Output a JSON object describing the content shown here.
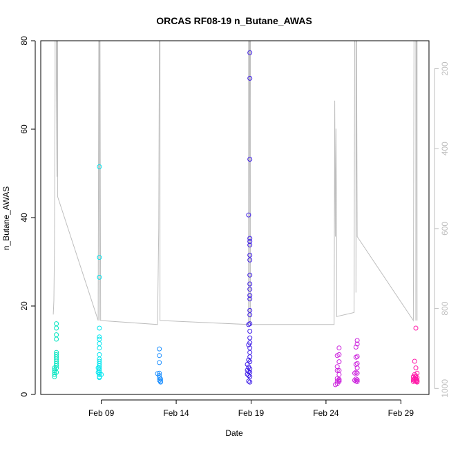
{
  "chart_data": {
    "type": "scatter",
    "title": "ORCAS RF08-19 n_Butane_AWAS",
    "xlabel": "Date",
    "ylabel": "n_Butane_AWAS",
    "ylim": [
      0,
      80
    ],
    "y_ticks": [
      0,
      20,
      40,
      60,
      80
    ],
    "xlim": [
      "2016-02-04T23:00",
      "2016-03-01T21:00"
    ],
    "x_ticks": [
      {
        "label": "Feb 09",
        "date": "2016-02-09"
      },
      {
        "label": "Feb 14",
        "date": "2016-02-14"
      },
      {
        "label": "Feb 19",
        "date": "2016-02-19"
      },
      {
        "label": "Feb 24",
        "date": "2016-02-24"
      },
      {
        "label": "Feb 29",
        "date": "2016-02-29"
      }
    ],
    "secondary_axis": {
      "label": "",
      "ticks": [
        200,
        400,
        600,
        800,
        1000
      ],
      "inverted": true,
      "range": [
        130,
        1015
      ],
      "color": "#bebebe"
    },
    "series": [
      {
        "color": "#00e5c0",
        "points": [
          [
            "2016-02-06T00:00",
            16.0
          ],
          [
            "2016-02-06T00:00",
            15.0
          ],
          [
            "2016-02-06T00:00",
            13.5
          ],
          [
            "2016-02-06T00:00",
            12.5
          ],
          [
            "2016-02-06T00:00",
            9.5
          ],
          [
            "2016-02-06T00:00",
            9.0
          ],
          [
            "2016-02-06T00:00",
            8.5
          ],
          [
            "2016-02-06T00:00",
            8.0
          ],
          [
            "2016-02-06T00:00",
            7.5
          ],
          [
            "2016-02-06T00:00",
            7.0
          ],
          [
            "2016-02-06T00:00",
            6.5
          ],
          [
            "2016-02-06T00:00",
            6.0
          ],
          [
            "2016-02-05T21:00",
            6.0
          ],
          [
            "2016-02-05T21:00",
            5.5
          ],
          [
            "2016-02-05T21:00",
            5.0
          ],
          [
            "2016-02-05T21:00",
            4.5
          ],
          [
            "2016-02-05T21:00",
            4.0
          ],
          [
            "2016-02-06T00:00",
            5.0
          ]
        ]
      },
      {
        "color": "#00e5ee",
        "points": [
          [
            "2016-02-08T21:00",
            51.5
          ],
          [
            "2016-02-08T21:00",
            31.0
          ],
          [
            "2016-02-08T21:00",
            26.5
          ],
          [
            "2016-02-08T21:00",
            15.0
          ],
          [
            "2016-02-08T21:00",
            13.0
          ],
          [
            "2016-02-08T21:00",
            12.5
          ],
          [
            "2016-02-08T21:00",
            11.5
          ],
          [
            "2016-02-08T21:00",
            10.5
          ],
          [
            "2016-02-08T21:00",
            9.0
          ],
          [
            "2016-02-08T21:00",
            8.0
          ],
          [
            "2016-02-08T21:00",
            7.5
          ],
          [
            "2016-02-08T21:00",
            7.0
          ],
          [
            "2016-02-08T21:00",
            6.5
          ],
          [
            "2016-02-08T21:00",
            6.0
          ],
          [
            "2016-02-08T21:00",
            5.5
          ],
          [
            "2016-02-08T21:00",
            5.0
          ],
          [
            "2016-02-08T21:00",
            4.5
          ],
          [
            "2016-02-08T21:00",
            4.0
          ],
          [
            "2016-02-08T21:00",
            3.8
          ],
          [
            "2016-02-08T19:00",
            5.0
          ],
          [
            "2016-02-08T19:00",
            6.0
          ],
          [
            "2016-02-09T00:00",
            4.5
          ]
        ]
      },
      {
        "color": "#1e90ff",
        "points": [
          [
            "2016-02-12T21:00",
            10.3
          ],
          [
            "2016-02-12T21:00",
            8.8
          ],
          [
            "2016-02-12T21:00",
            7.2
          ],
          [
            "2016-02-12T21:00",
            4.8
          ],
          [
            "2016-02-12T21:00",
            4.3
          ],
          [
            "2016-02-12T21:00",
            3.8
          ],
          [
            "2016-02-12T23:00",
            3.5
          ],
          [
            "2016-02-12T23:00",
            3.0
          ],
          [
            "2016-02-12T23:00",
            2.8
          ],
          [
            "2016-02-12T21:00",
            3.2
          ],
          [
            "2016-02-12T18:00",
            4.7
          ]
        ]
      },
      {
        "color": "#3f1ee8",
        "points": [
          [
            "2016-02-18T22:00",
            77.3
          ],
          [
            "2016-02-18T22:00",
            71.5
          ],
          [
            "2016-02-18T22:00",
            53.2
          ],
          [
            "2016-02-18T20:00",
            40.6
          ],
          [
            "2016-02-18T22:00",
            35.3
          ],
          [
            "2016-02-18T22:00",
            34.6
          ],
          [
            "2016-02-18T22:00",
            33.8
          ],
          [
            "2016-02-18T22:00",
            31.5
          ],
          [
            "2016-02-18T22:00",
            30.4
          ],
          [
            "2016-02-18T22:00",
            27.0
          ],
          [
            "2016-02-18T22:00",
            25.0
          ],
          [
            "2016-02-18T22:00",
            23.8
          ],
          [
            "2016-02-18T22:00",
            22.4
          ],
          [
            "2016-02-18T22:00",
            21.6
          ],
          [
            "2016-02-18T22:00",
            19.0
          ],
          [
            "2016-02-18T22:00",
            18.0
          ],
          [
            "2016-02-18T22:00",
            16.0
          ],
          [
            "2016-02-18T20:00",
            15.8
          ],
          [
            "2016-02-18T22:00",
            14.3
          ],
          [
            "2016-02-18T22:00",
            12.8
          ],
          [
            "2016-02-18T22:00",
            11.7
          ],
          [
            "2016-02-18T20:00",
            11.2
          ],
          [
            "2016-02-18T22:00",
            10.5
          ],
          [
            "2016-02-18T22:00",
            9.5
          ],
          [
            "2016-02-18T22:00",
            8.5
          ],
          [
            "2016-02-18T20:00",
            7.8
          ],
          [
            "2016-02-18T22:00",
            7.4
          ],
          [
            "2016-02-18T18:00",
            6.8
          ],
          [
            "2016-02-18T20:00",
            6.2
          ],
          [
            "2016-02-18T22:00",
            5.8
          ],
          [
            "2016-02-18T18:00",
            5.5
          ],
          [
            "2016-02-18T20:00",
            5.2
          ],
          [
            "2016-02-18T22:00",
            5.0
          ],
          [
            "2016-02-18T18:00",
            4.6
          ],
          [
            "2016-02-18T20:00",
            4.3
          ],
          [
            "2016-02-18T22:00",
            4.0
          ],
          [
            "2016-02-18T20:00",
            3.0
          ],
          [
            "2016-02-18T22:00",
            2.8
          ]
        ]
      },
      {
        "color": "#cc22dd",
        "points": [
          [
            "2016-02-24T21:00",
            10.5
          ],
          [
            "2016-02-24T18:00",
            8.8
          ],
          [
            "2016-02-24T21:00",
            9.0
          ],
          [
            "2016-02-24T21:00",
            7.4
          ],
          [
            "2016-02-24T18:00",
            6.3
          ],
          [
            "2016-02-24T21:00",
            5.4
          ],
          [
            "2016-02-24T18:00",
            5.4
          ],
          [
            "2016-02-24T21:00",
            4.5
          ],
          [
            "2016-02-24T18:00",
            3.6
          ],
          [
            "2016-02-24T21:00",
            3.4
          ],
          [
            "2016-02-24T18:00",
            3.0
          ],
          [
            "2016-02-24T21:00",
            2.9
          ],
          [
            "2016-02-24T18:00",
            2.4
          ],
          [
            "2016-02-24T15:00",
            2.2
          ],
          [
            "2016-02-24T21:00",
            3.2
          ],
          [
            "2016-02-26T02:00",
            12.2
          ],
          [
            "2016-02-26T02:00",
            11.4
          ],
          [
            "2016-02-26T00:00",
            10.7
          ],
          [
            "2016-02-26T02:00",
            8.6
          ],
          [
            "2016-02-26T00:00",
            8.4
          ],
          [
            "2016-02-26T02:00",
            7.0
          ],
          [
            "2016-02-26T00:00",
            6.8
          ],
          [
            "2016-02-26T02:00",
            6.0
          ],
          [
            "2016-02-26T00:00",
            5.0
          ],
          [
            "2016-02-26T02:00",
            4.8
          ],
          [
            "2016-02-26T00:00",
            3.5
          ],
          [
            "2016-02-26T02:00",
            3.3
          ],
          [
            "2016-02-26T00:00",
            3.0
          ],
          [
            "2016-02-26T02:00",
            2.9
          ],
          [
            "2016-02-25T22:00",
            3.2
          ],
          [
            "2016-02-25T22:00",
            4.8
          ]
        ]
      },
      {
        "color": "#ff1aa8",
        "points": [
          [
            "2016-03-01T00:00",
            15.0
          ],
          [
            "2016-02-29T22:00",
            7.5
          ],
          [
            "2016-03-01T00:00",
            6.0
          ],
          [
            "2016-03-01T02:00",
            4.8
          ],
          [
            "2016-02-29T22:00",
            4.5
          ],
          [
            "2016-03-01T00:00",
            4.2
          ],
          [
            "2016-02-29T20:00",
            4.0
          ],
          [
            "2016-03-01T02:00",
            3.8
          ],
          [
            "2016-02-29T22:00",
            3.6
          ],
          [
            "2016-03-01T00:00",
            3.4
          ],
          [
            "2016-02-29T20:00",
            3.3
          ],
          [
            "2016-03-01T02:00",
            3.2
          ],
          [
            "2016-02-29T22:00",
            3.1
          ],
          [
            "2016-03-01T00:00",
            3.0
          ],
          [
            "2016-02-29T20:00",
            2.9
          ],
          [
            "2016-03-01T02:00",
            2.8
          ],
          [
            "2016-02-29T22:00",
            3.5
          ],
          [
            "2016-03-01T00:00",
            3.7
          ],
          [
            "2016-02-29T20:00",
            3.9
          ],
          [
            "2016-03-01T02:00",
            2.9
          ]
        ]
      }
    ],
    "pressure_line": [
      [
        "2016-02-05T19:00",
        815
      ],
      [
        "2016-02-05T20:00",
        780
      ],
      [
        "2016-02-05T21:00",
        640
      ],
      [
        "2016-02-05T22:00",
        230
      ],
      [
        "2016-02-05T22:00",
        130
      ],
      [
        "2016-02-06T00:00",
        130
      ],
      [
        "2016-02-06T00:00",
        240
      ],
      [
        "2016-02-06T01:00",
        470
      ],
      [
        "2016-02-06T01:00",
        130
      ],
      [
        "2016-02-06T02:00",
        130
      ],
      [
        "2016-02-06T02:00",
        520
      ],
      [
        "2016-02-08T19:00",
        830
      ],
      [
        "2016-02-08T20:00",
        130
      ],
      [
        "2016-02-08T21:00",
        130
      ],
      [
        "2016-02-08T21:00",
        830
      ],
      [
        "2016-02-08T22:00",
        130
      ],
      [
        "2016-02-08T23:00",
        830
      ],
      [
        "2016-02-12T18:00",
        840
      ],
      [
        "2016-02-12T20:00",
        600
      ],
      [
        "2016-02-12T21:00",
        130
      ],
      [
        "2016-02-12T22:00",
        130
      ],
      [
        "2016-02-12T22:00",
        830
      ],
      [
        "2016-02-18T20:00",
        840
      ],
      [
        "2016-02-18T20:00",
        130
      ],
      [
        "2016-02-18T21:00",
        130
      ],
      [
        "2016-02-18T21:00",
        840
      ],
      [
        "2016-02-18T22:00",
        130
      ],
      [
        "2016-02-18T23:00",
        130
      ],
      [
        "2016-02-18T23:00",
        840
      ],
      [
        "2016-02-24T13:00",
        840
      ],
      [
        "2016-02-24T14:00",
        280
      ],
      [
        "2016-02-24T15:00",
        620
      ],
      [
        "2016-02-24T16:00",
        350
      ],
      [
        "2016-02-24T17:00",
        620
      ],
      [
        "2016-02-24T17:00",
        820
      ],
      [
        "2016-02-25T21:00",
        810
      ],
      [
        "2016-02-25T22:00",
        130
      ],
      [
        "2016-02-26T00:00",
        130
      ],
      [
        "2016-02-26T00:00",
        760
      ],
      [
        "2016-02-26T01:00",
        130
      ],
      [
        "2016-02-26T02:00",
        620
      ],
      [
        "2016-02-29T20:00",
        830
      ],
      [
        "2016-02-29T21:00",
        130
      ],
      [
        "2016-03-01T00:00",
        130
      ],
      [
        "2016-03-01T00:00",
        830
      ],
      [
        "2016-03-01T01:00",
        130
      ],
      [
        "2016-03-01T02:00",
        130
      ],
      [
        "2016-03-01T02:00",
        830
      ]
    ]
  }
}
